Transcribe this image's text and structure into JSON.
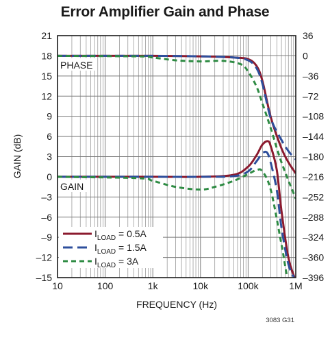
{
  "chart_data": {
    "type": "line",
    "title": "Error Amplifier Gain and Phase",
    "xlabel": "FREQUENCY (Hz)",
    "ylabel_left": "GAIN (dB)",
    "x_scale": "log",
    "xlim": [
      10,
      1000000
    ],
    "ylim_left": [
      -15,
      21
    ],
    "ylim_right": [
      -396,
      36
    ],
    "x_ticks": [
      10,
      100,
      1000,
      10000,
      100000,
      1000000
    ],
    "x_tick_labels": [
      "10",
      "100",
      "1k",
      "10k",
      "100k",
      "1M"
    ],
    "y_left_ticks": [
      21,
      18,
      15,
      12,
      9,
      6,
      3,
      0,
      -3,
      -6,
      -9,
      -12,
      -15
    ],
    "y_left_tick_labels": [
      "21",
      "18",
      "15",
      "12",
      "9",
      "6",
      "3",
      "0",
      "–3",
      "–6",
      "–9",
      "–12",
      "–15"
    ],
    "y_right_ticks": [
      36,
      0,
      -36,
      -72,
      -108,
      -144,
      -180,
      -216,
      -252,
      -288,
      -324,
      -360,
      -396
    ],
    "y_right_tick_labels": [
      "36",
      "0",
      "–36",
      "–72",
      "–108",
      "–144",
      "–180",
      "–216",
      "–252",
      "–288",
      "–324",
      "–360",
      "–396"
    ],
    "grid": true,
    "legend_position": "bottom-left",
    "annotations": {
      "phase": "PHASE",
      "gain": "GAIN"
    },
    "series": [
      {
        "load": "0.5A",
        "color": "#8b1a2e",
        "dash": "solid",
        "legend_main": "I",
        "legend_sub": "LOAD",
        "legend_rest": " = 0.5A",
        "phase": {
          "x": [
            10,
            1000,
            10000,
            50000,
            100000,
            150000,
            200000,
            300000,
            500000,
            700000,
            1000000
          ],
          "y": [
            0,
            0,
            -1,
            -3,
            -6,
            -18,
            -45,
            -110,
            -165,
            -190,
            -210
          ]
        },
        "gain": {
          "x": [
            10,
            1000,
            10000,
            50000,
            100000,
            150000,
            200000,
            260000,
            300000,
            400000,
            500000,
            700000,
            1000000
          ],
          "y": [
            0,
            0,
            0,
            0.3,
            1.5,
            3.2,
            4.8,
            5.3,
            4.5,
            1.0,
            -5.0,
            -12.0,
            -15.5
          ]
        }
      },
      {
        "load": "1.5A",
        "color": "#2e4f9c",
        "dash": "long",
        "legend_main": "I",
        "legend_sub": "LOAD",
        "legend_rest": " = 1.5A",
        "phase": {
          "x": [
            10,
            1000,
            10000,
            50000,
            100000,
            150000,
            200000,
            300000,
            500000,
            700000,
            1000000
          ],
          "y": [
            0,
            0,
            -1,
            -3,
            -8,
            -22,
            -50,
            -112,
            -150,
            -170,
            -185
          ]
        },
        "gain": {
          "x": [
            10,
            1000,
            10000,
            50000,
            100000,
            150000,
            200000,
            250000,
            300000,
            400000,
            500000,
            700000,
            1000000
          ],
          "y": [
            0,
            0,
            0,
            0.1,
            0.8,
            2.3,
            3.5,
            3.6,
            2.0,
            -2.0,
            -7.5,
            -13.0,
            -15.5
          ]
        }
      },
      {
        "load": "3A",
        "color": "#2e8b43",
        "dash": "short",
        "legend_main": "I",
        "legend_sub": "LOAD",
        "legend_rest": " = 3A",
        "phase": {
          "x": [
            10,
            500,
            1000,
            3000,
            10000,
            30000,
            70000,
            100000,
            150000,
            200000,
            300000,
            500000,
            1000000
          ],
          "y": [
            0,
            -1,
            -3,
            -8,
            -10,
            -9,
            -15,
            -28,
            -55,
            -85,
            -130,
            -190,
            -255
          ]
        },
        "gain": {
          "x": [
            10,
            500,
            1000,
            3000,
            10000,
            20000,
            50000,
            100000,
            150000,
            200000,
            300000,
            500000,
            700000,
            1000000
          ],
          "y": [
            0,
            -0.2,
            -0.6,
            -1.5,
            -1.9,
            -1.5,
            -0.6,
            0.4,
            1.0,
            0.8,
            -2.0,
            -10.0,
            -15.5,
            -16.0
          ]
        }
      }
    ]
  },
  "footnote": "3083 G31"
}
